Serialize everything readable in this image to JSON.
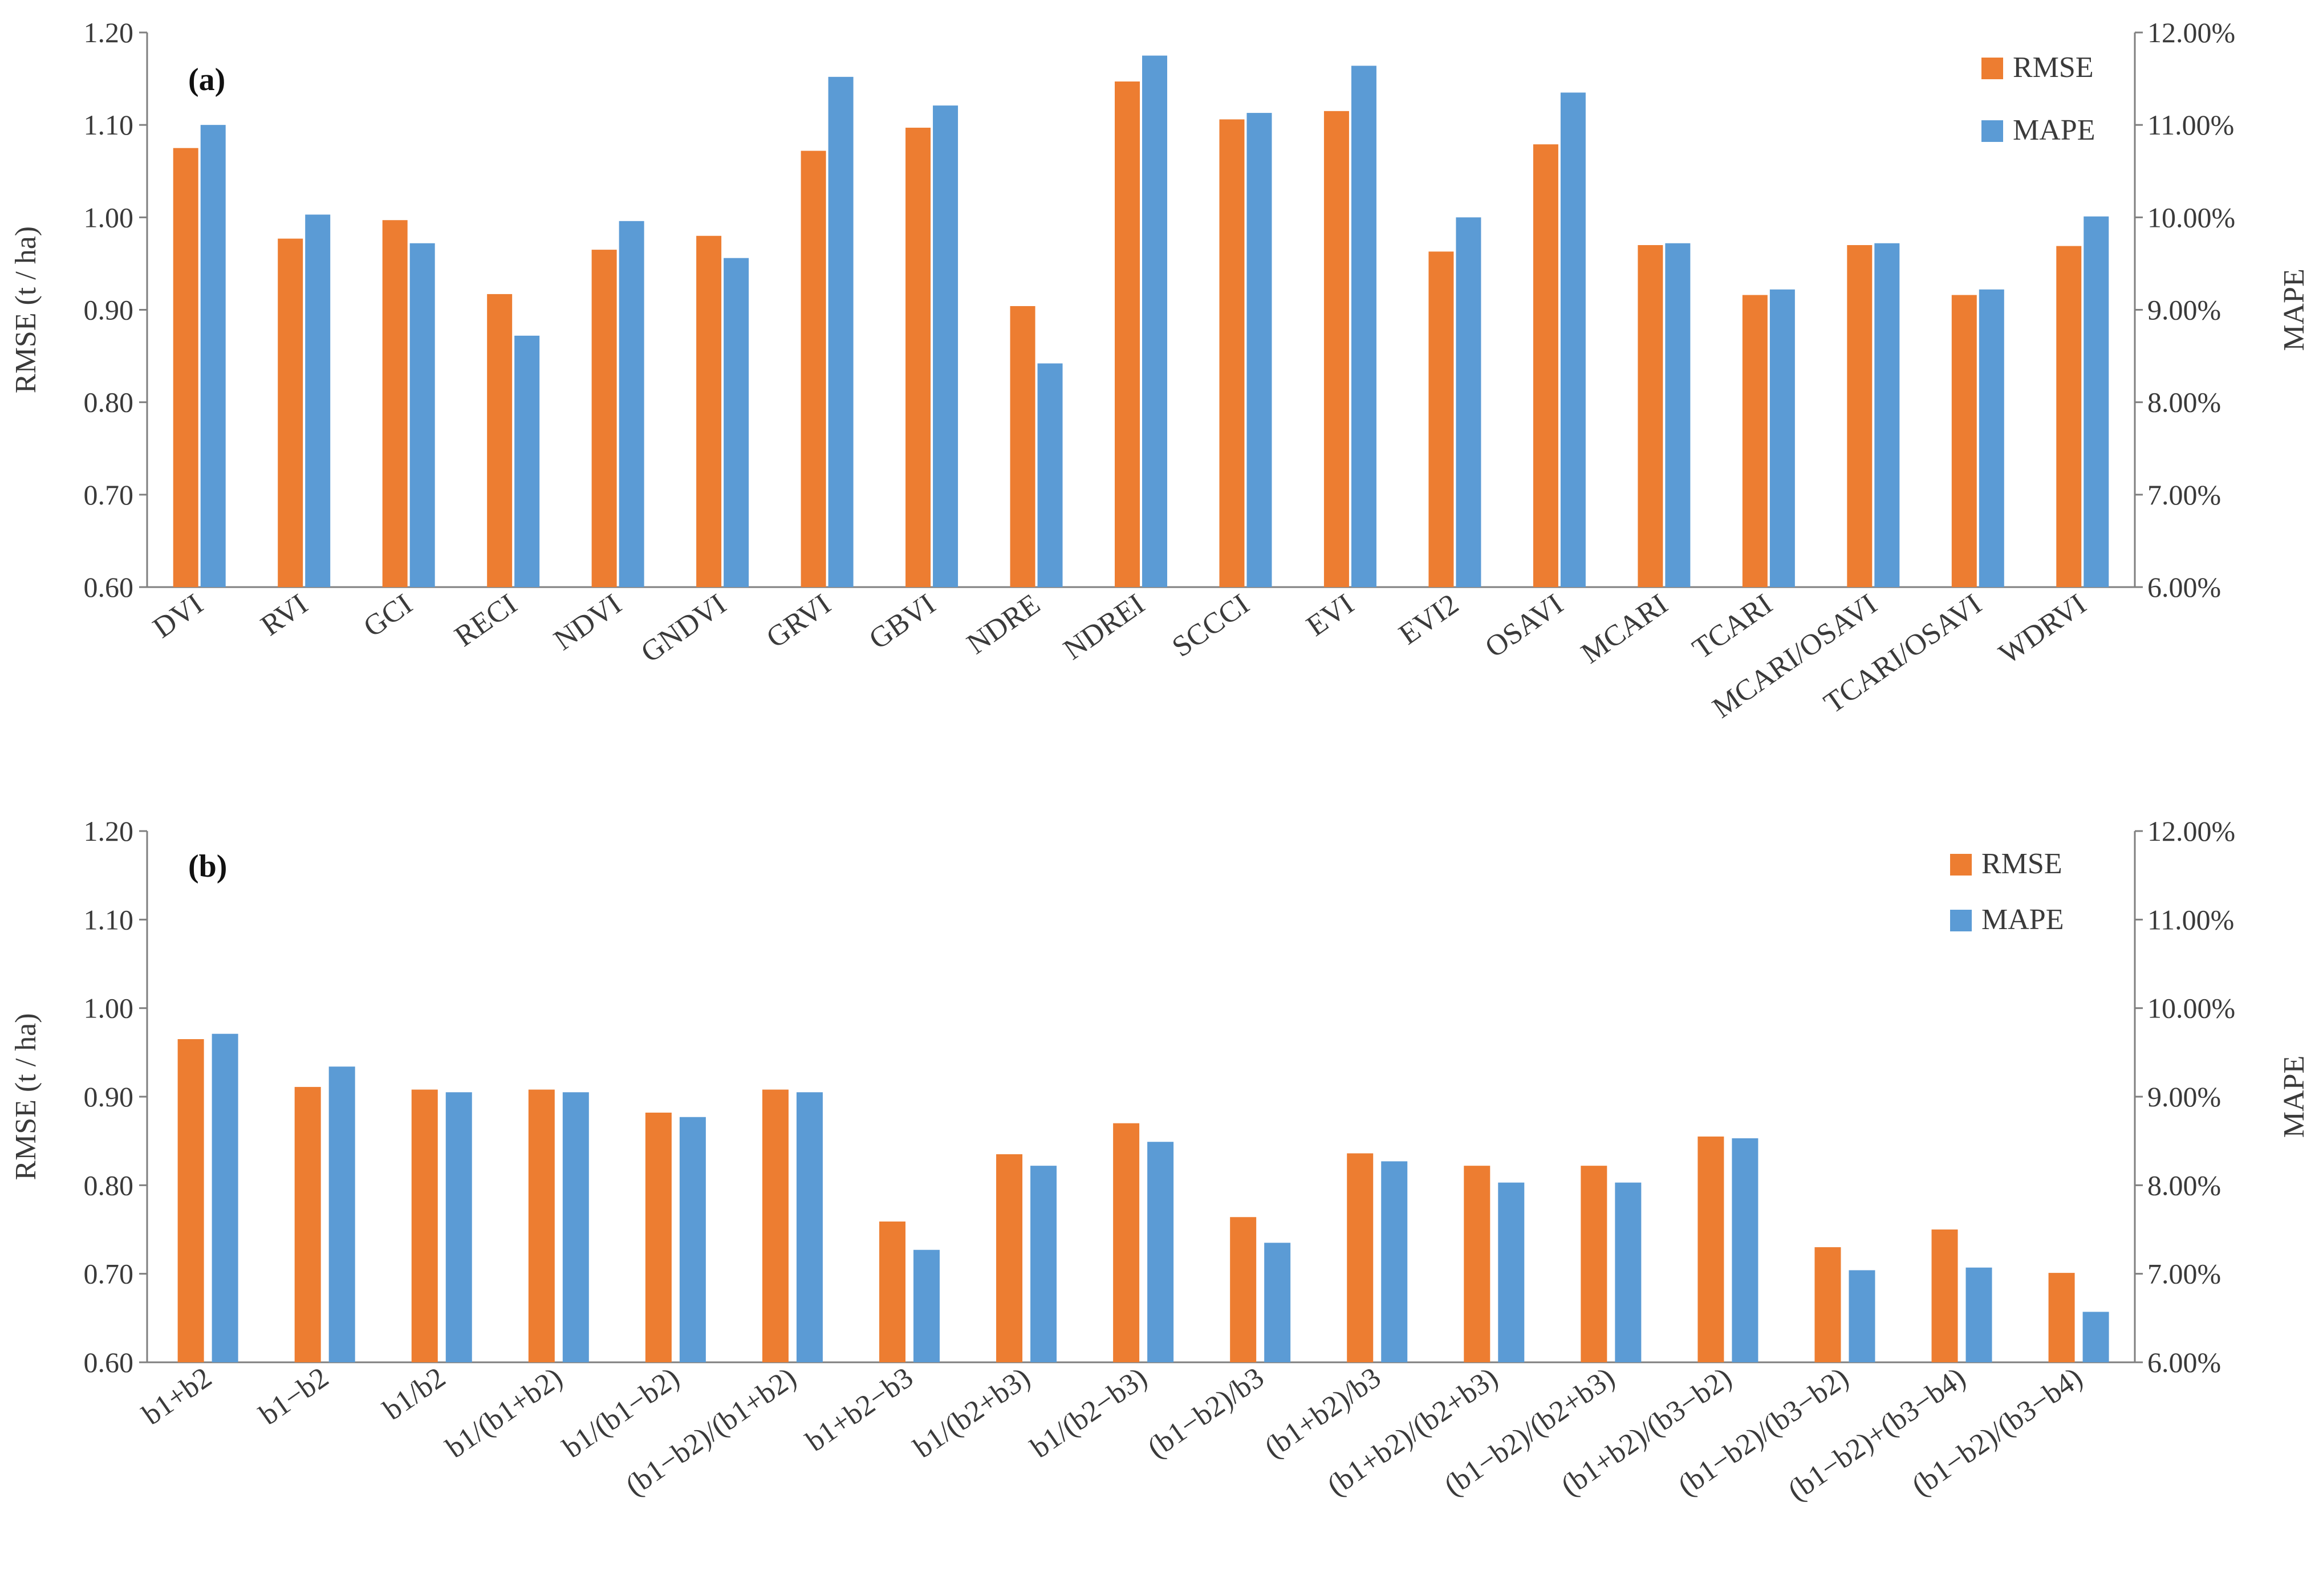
{
  "colors": {
    "rmse": "#ED7D31",
    "mape": "#5B9BD5",
    "axis": "#7f7f7f",
    "text": "#3a3a3a"
  },
  "chart_data": [
    {
      "type": "bar",
      "panel_label": "(a)",
      "ylabel": "RMSE (t / ha)",
      "y2label": "MAPE",
      "ylim": [
        0.6,
        1.2
      ],
      "y2lim": [
        6,
        12
      ],
      "yticks": [
        "0.60",
        "0.70",
        "0.80",
        "0.90",
        "1.00",
        "1.10",
        "1.20"
      ],
      "y2ticks": [
        "6.00%",
        "7.00%",
        "8.00%",
        "9.00%",
        "10.00%",
        "11.00%",
        "12.00%"
      ],
      "legend": [
        "RMSE",
        "MAPE"
      ],
      "legend_position": "top-right",
      "grid": false,
      "categories": [
        "DVI",
        "RVI",
        "GCI",
        "RECI",
        "NDVI",
        "GNDVI",
        "GRVI",
        "GBVI",
        "NDRE",
        "NDREI",
        "SCCCI",
        "EVI",
        "EVI2",
        "OSAVI",
        "MCARI",
        "TCARI",
        "MCARI/OSAVI",
        "TCARI/OSAVI",
        "WDRVI"
      ],
      "series": [
        {
          "name": "RMSE",
          "axis": "left",
          "values": [
            1.075,
            0.977,
            0.997,
            0.917,
            0.965,
            0.98,
            1.072,
            1.097,
            0.904,
            1.147,
            1.106,
            1.115,
            0.963,
            1.079,
            0.97,
            0.916,
            0.97,
            0.916,
            0.969
          ]
        },
        {
          "name": "MAPE",
          "axis": "right",
          "values": [
            11.0,
            10.03,
            9.72,
            8.72,
            9.96,
            9.56,
            11.52,
            11.21,
            8.42,
            11.75,
            11.13,
            11.64,
            10.0,
            11.35,
            9.72,
            9.22,
            9.72,
            9.22,
            10.01
          ]
        }
      ]
    },
    {
      "type": "bar",
      "panel_label": "(b)",
      "ylabel": "RMSE (t / ha)",
      "y2label": "MAPE",
      "ylim": [
        0.6,
        1.2
      ],
      "y2lim": [
        6,
        12
      ],
      "yticks": [
        "0.60",
        "0.70",
        "0.80",
        "0.90",
        "1.00",
        "1.10",
        "1.20"
      ],
      "y2ticks": [
        "6.00%",
        "7.00%",
        "8.00%",
        "9.00%",
        "10.00%",
        "11.00%",
        "12.00%"
      ],
      "legend": [
        "RMSE",
        "MAPE"
      ],
      "legend_position": "top-right",
      "grid": false,
      "categories": [
        "b1+b2",
        "b1−b2",
        "b1/b2",
        "b1/(b1+b2)",
        "b1/(b1−b2)",
        "(b1−b2)/(b1+b2)",
        "b1+b2−b3",
        "b1/(b2+b3)",
        "b1/(b2−b3)",
        "(b1−b2)/b3",
        "(b1+b2)/b3",
        "(b1+b2)/(b2+b3)",
        "(b1−b2)/(b2+b3)",
        "(b1+b2)/(b3−b2)",
        "(b1−b2)/(b3−b2)",
        "(b1−b2)+(b3−b4)",
        "(b1−b2)/(b3−b4)"
      ],
      "series": [
        {
          "name": "RMSE",
          "axis": "left",
          "values": [
            0.965,
            0.911,
            0.908,
            0.908,
            0.882,
            0.908,
            0.759,
            0.835,
            0.87,
            0.764,
            0.836,
            0.822,
            0.822,
            0.855,
            0.73,
            0.75,
            0.701
          ]
        },
        {
          "name": "MAPE",
          "axis": "right",
          "values": [
            9.71,
            9.34,
            9.05,
            9.05,
            8.77,
            9.05,
            7.27,
            8.22,
            8.49,
            7.35,
            8.27,
            8.03,
            8.03,
            8.53,
            7.04,
            7.07,
            6.57
          ]
        }
      ]
    }
  ]
}
